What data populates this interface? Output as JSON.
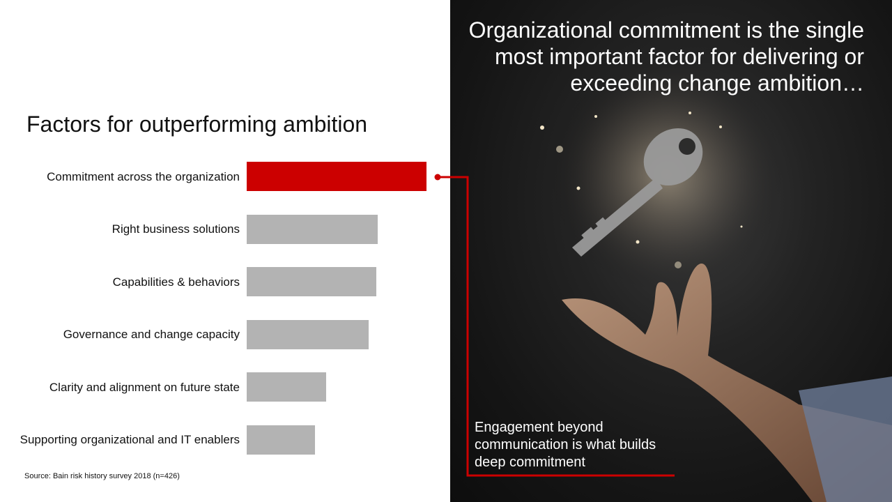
{
  "headline": "Organizational commitment is the single most important factor for delivering or exceeding change ambition…",
  "callout": "Engagement beyond communication is what builds deep commitment",
  "source": "Source: Bain risk history survey 2018 (n=426)",
  "colors": {
    "highlight": "#cc0000",
    "bar": "#b3b3b3",
    "background_dark": "#151515"
  },
  "illustration": {
    "icons": [
      "key-icon",
      "open-hand-icon"
    ]
  },
  "chart_data": {
    "type": "bar",
    "orientation": "horizontal",
    "title": "Factors for outperforming ambition",
    "categories": [
      "Commitment across the organization",
      "Right business solutions",
      "Capabilities & behaviors",
      "Governance and change capacity",
      "Clarity and alignment on future state",
      "Supporting organizational and IT enablers"
    ],
    "values": [
      100,
      73,
      72,
      68,
      44,
      38
    ],
    "highlight_index": 0,
    "value_axis_shown": false,
    "grid": false
  }
}
